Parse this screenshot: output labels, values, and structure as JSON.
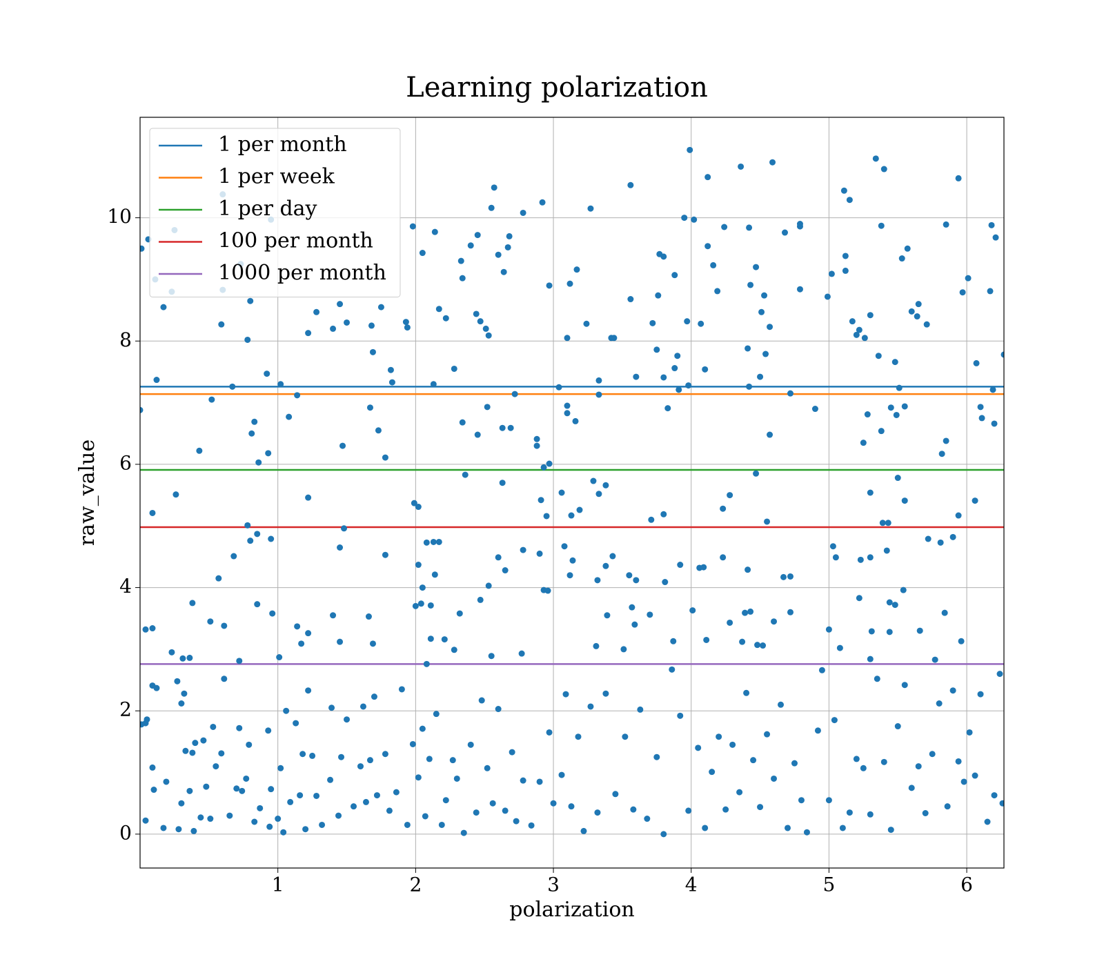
{
  "chart_data": {
    "type": "scatter",
    "title": "Learning polarization",
    "x_label": "polarization",
    "y_label": "raw_value",
    "color": "#1f77b4",
    "grid": true,
    "legend": "upper left",
    "xlim": [
      0,
      6.27
    ],
    "ylim": [
      -0.55,
      11.63
    ],
    "xticks": [
      1,
      2,
      3,
      4,
      5,
      6
    ],
    "yticks": [
      0,
      2,
      4,
      6,
      8,
      10
    ],
    "hlines": [
      {
        "name": "1 per month",
        "color": "#1f77b4",
        "value": 7.26
      },
      {
        "name": "1 per week",
        "color": "#ff7f0e",
        "value": 7.14
      },
      {
        "name": "1 per day",
        "color": "#2ca02c",
        "value": 5.91
      },
      {
        "name": "100 per month",
        "color": "#d62728",
        "value": 4.98
      },
      {
        "name": "1000 per month",
        "color": "#9467bd",
        "value": 2.76
      }
    ],
    "x": [
      0.01,
      0.06,
      0.11,
      0.17,
      0.23,
      0.25,
      0.12,
      0.6,
      0.6,
      0.59,
      0.78,
      0.8,
      0.73,
      0.92,
      1.02,
      1.08,
      1.14,
      0.95,
      1.22,
      1.28,
      1.4,
      1.45,
      1.5,
      1.47,
      1.68,
      1.69,
      1.75,
      1.82,
      1.83,
      1.67,
      1.73,
      1.78,
      1.93,
      1.94,
      1.98,
      2.05,
      2.14,
      2.17,
      2.22,
      2.13,
      2.28,
      2.33,
      2.34,
      2.4,
      2.45,
      2.44,
      2.47,
      2.51,
      2.53,
      2.55,
      2.57,
      2.6,
      2.64,
      2.68,
      2.67,
      2.78,
      2.92,
      2.97,
      2.72,
      2.52,
      2.34,
      2.45,
      2.63,
      2.69,
      2.88,
      2.88,
      2.93,
      2.97,
      3.04,
      3.1,
      3.1,
      3.1,
      3.16,
      3.12,
      3.17,
      3.27,
      3.24,
      3.33,
      3.33,
      3.42,
      3.44,
      3.56,
      3.56,
      3.6,
      3.72,
      3.77,
      3.8,
      3.76,
      3.75,
      3.8,
      3.83,
      3.88,
      3.88,
      3.9,
      3.91,
      3.95,
      3.97,
      3.98,
      3.99,
      4.02,
      4.07,
      4.1,
      4.12,
      4.12,
      4.16,
      4.19,
      4.24,
      4.36,
      4.41,
      4.42,
      4.43,
      4.42,
      4.47,
      4.51,
      4.53,
      4.5,
      4.54,
      4.57,
      4.57,
      4.59,
      4.68,
      4.72,
      4.79,
      4.79,
      4.79,
      4.9,
      4.99,
      5.02,
      5.11,
      5.12,
      5.12,
      5.15,
      5.17,
      5.2,
      5.22,
      5.26,
      5.3,
      5.34,
      5.38,
      5.4,
      5.36,
      5.28,
      5.25,
      5.38,
      5.45,
      5.48,
      5.51,
      5.53,
      5.57,
      5.6,
      5.64,
      5.65,
      5.71,
      5.55,
      5.49,
      5.82,
      5.85,
      5.85,
      5.94,
      5.97,
      6.01,
      6.07,
      6.1,
      6.11,
      6.18,
      6.17,
      6.19,
      6.2,
      6.21,
      6.27,
      0.0,
      0.09,
      0.26,
      0.43,
      0.52,
      0.67,
      0.81,
      0.83,
      0.86,
      0.93,
      0.57,
      0.68,
      0.78,
      0.8,
      0.85,
      0.95,
      0.85,
      0.96,
      0.38,
      0.51,
      0.61,
      0.04,
      0.09,
      0.23,
      0.31,
      0.36,
      0.72,
      1.01,
      1.22,
      1.45,
      1.48,
      1.14,
      1.17,
      1.22,
      1.4,
      1.45,
      1.66,
      1.69,
      1.78,
      1.99,
      2.02,
      2.0,
      2.02,
      2.04,
      2.05,
      2.08,
      2.11,
      2.14,
      2.13,
      2.17,
      2.11,
      2.21,
      2.08,
      2.28,
      2.32,
      2.36,
      2.47,
      2.53,
      2.6,
      2.63,
      2.65,
      2.55,
      2.78,
      2.77,
      2.9,
      2.93,
      2.96,
      2.95,
      2.91,
      3.06,
      3.08,
      3.12,
      3.13,
      3.19,
      3.14,
      3.29,
      3.33,
      3.38,
      3.38,
      3.32,
      3.43,
      3.39,
      3.31,
      3.51,
      3.55,
      3.6,
      3.57,
      3.59,
      3.71,
      3.7,
      3.8,
      3.81,
      3.87,
      3.92,
      4.01,
      4.06,
      4.09,
      4.11,
      4.23,
      4.28,
      4.23,
      4.28,
      4.37,
      4.39,
      4.41,
      4.43,
      4.47,
      4.48,
      4.52,
      4.55,
      4.6,
      4.67,
      4.72,
      4.72,
      5.0,
      5.03,
      5.05,
      5.08,
      5.23,
      5.22,
      5.3,
      5.3,
      5.31,
      5.3,
      5.39,
      5.43,
      5.42,
      5.44,
      5.48,
      5.5,
      5.55,
      5.54,
      5.44,
      5.66,
      5.72,
      5.81,
      5.9,
      5.94,
      5.96,
      5.84,
      6.06,
      5.77,
      0.01,
      0.04,
      0.05,
      0.04,
      0.09,
      0.12,
      0.09,
      0.1,
      0.17,
      0.19,
      0.27,
      0.3,
      0.32,
      0.33,
      0.3,
      0.28,
      0.36,
      0.38,
      0.39,
      0.4,
      0.44,
      0.46,
      0.48,
      0.51,
      0.53,
      0.55,
      0.59,
      0.61,
      0.65,
      0.7,
      0.72,
      0.74,
      0.77,
      0.79,
      0.83,
      0.87,
      0.93,
      0.94,
      0.95,
      1.0,
      1.02,
      1.04,
      1.06,
      1.09,
      1.13,
      1.16,
      1.18,
      1.2,
      1.22,
      1.25,
      1.28,
      1.32,
      1.38,
      1.39,
      1.44,
      1.46,
      1.5,
      1.55,
      1.6,
      1.62,
      1.64,
      1.67,
      1.7,
      1.72,
      1.78,
      1.81,
      1.86,
      1.9,
      1.94,
      1.98,
      2.02,
      2.05,
      2.07,
      2.1,
      2.15,
      2.19,
      2.22,
      2.27,
      2.3,
      2.35,
      2.4,
      2.44,
      2.48,
      2.52,
      2.56,
      2.6,
      2.65,
      2.7,
      2.73,
      2.78,
      2.84,
      2.9,
      2.97,
      3.0,
      3.06,
      3.09,
      3.13,
      3.18,
      3.22,
      3.27,
      3.32,
      3.38,
      3.45,
      3.52,
      3.58,
      3.63,
      3.68,
      3.75,
      3.8,
      3.86,
      3.92,
      3.98,
      4.05,
      4.1,
      4.15,
      4.2,
      4.25,
      4.3,
      4.35,
      4.4,
      4.45,
      4.5,
      4.55,
      4.6,
      4.65,
      4.7,
      4.75,
      4.8,
      4.84,
      4.92,
      4.95,
      5.0,
      5.04,
      5.1,
      5.15,
      5.2,
      5.25,
      5.3,
      5.35,
      5.4,
      5.45,
      5.5,
      5.55,
      5.6,
      5.65,
      5.7,
      5.75,
      5.8,
      5.86,
      5.9,
      5.94,
      5.98,
      6.02,
      6.06,
      6.1,
      6.15,
      6.2,
      6.24,
      6.26
    ],
    "values": [
      9.5,
      9.65,
      9.0,
      8.55,
      8.8,
      9.8,
      7.37,
      10.38,
      8.83,
      8.27,
      8.02,
      8.65,
      9.25,
      7.47,
      7.3,
      6.77,
      7.12,
      9.97,
      8.13,
      8.47,
      8.2,
      8.6,
      8.3,
      6.3,
      8.25,
      7.82,
      8.55,
      7.53,
      7.33,
      6.92,
      6.55,
      6.11,
      8.31,
      8.22,
      9.86,
      9.43,
      9.77,
      8.52,
      8.37,
      7.3,
      7.55,
      9.3,
      9.02,
      9.55,
      9.72,
      8.44,
      8.32,
      8.2,
      8.09,
      10.16,
      10.49,
      9.4,
      9.12,
      9.7,
      9.52,
      10.08,
      10.25,
      8.9,
      7.14,
      6.93,
      6.68,
      6.48,
      6.59,
      6.59,
      6.41,
      6.3,
      5.95,
      6.01,
      7.25,
      8.05,
      6.95,
      6.83,
      6.7,
      8.93,
      9.16,
      10.15,
      8.28,
      7.36,
      7.13,
      8.05,
      8.05,
      10.53,
      8.68,
      7.42,
      8.29,
      9.41,
      9.37,
      8.74,
      7.86,
      7.41,
      6.91,
      9.07,
      7.56,
      7.76,
      7.21,
      10.0,
      8.32,
      7.28,
      11.1,
      9.97,
      8.28,
      7.54,
      10.66,
      9.54,
      9.23,
      8.81,
      9.85,
      10.83,
      7.88,
      9.84,
      8.91,
      7.26,
      9.2,
      8.47,
      8.74,
      7.42,
      7.79,
      8.23,
      6.48,
      10.9,
      9.76,
      7.15,
      9.9,
      9.86,
      8.84,
      6.9,
      8.72,
      9.09,
      10.44,
      9.38,
      9.14,
      10.29,
      8.32,
      8.1,
      8.18,
      8.05,
      8.42,
      10.96,
      9.87,
      10.79,
      7.76,
      6.81,
      6.35,
      6.54,
      6.92,
      7.66,
      7.24,
      9.34,
      9.5,
      8.48,
      8.4,
      8.6,
      8.27,
      6.94,
      6.8,
      6.17,
      6.38,
      9.89,
      10.64,
      8.79,
      9.02,
      7.64,
      6.93,
      6.75,
      9.88,
      8.81,
      7.21,
      6.66,
      9.68,
      7.78,
      6.88,
      5.21,
      5.51,
      6.22,
      7.05,
      7.26,
      6.5,
      6.69,
      6.03,
      6.18,
      4.15,
      4.51,
      5.01,
      4.76,
      4.87,
      4.79,
      3.73,
      3.58,
      3.75,
      3.45,
      3.38,
      3.32,
      3.34,
      2.95,
      2.85,
      2.86,
      2.81,
      2.87,
      5.46,
      4.65,
      4.96,
      3.37,
      3.09,
      3.26,
      3.55,
      3.12,
      3.53,
      3.09,
      4.53,
      5.37,
      5.31,
      3.7,
      4.37,
      3.74,
      4.0,
      4.73,
      3.71,
      4.21,
      4.74,
      4.74,
      3.17,
      3.16,
      2.76,
      2.99,
      3.58,
      5.83,
      3.8,
      4.03,
      4.49,
      5.7,
      4.28,
      2.89,
      4.61,
      2.93,
      4.55,
      3.96,
      3.95,
      5.16,
      5.42,
      5.54,
      4.67,
      4.2,
      5.17,
      5.26,
      4.44,
      5.73,
      5.52,
      5.66,
      4.35,
      4.12,
      4.51,
      3.55,
      3.05,
      3.0,
      4.2,
      4.12,
      3.68,
      3.4,
      5.1,
      3.56,
      5.19,
      4.09,
      3.13,
      4.37,
      3.63,
      4.32,
      4.33,
      3.15,
      5.28,
      5.5,
      4.49,
      3.43,
      3.12,
      3.59,
      4.29,
      3.61,
      5.85,
      3.07,
      3.06,
      5.07,
      3.45,
      4.17,
      4.18,
      3.6,
      3.32,
      4.67,
      4.49,
      3.02,
      4.45,
      3.83,
      4.49,
      5.54,
      3.29,
      2.84,
      5.05,
      5.05,
      4.6,
      3.76,
      3.72,
      5.78,
      5.41,
      3.96,
      3.28,
      3.3,
      4.79,
      4.73,
      4.82,
      5.17,
      3.13,
      3.59,
      5.41,
      2.83,
      1.78,
      1.8,
      1.86,
      0.22,
      2.41,
      2.37,
      1.08,
      0.72,
      0.1,
      0.85,
      2.48,
      2.12,
      2.28,
      1.35,
      0.5,
      0.08,
      0.7,
      1.32,
      0.05,
      1.48,
      0.27,
      1.52,
      0.77,
      0.25,
      1.74,
      1.1,
      1.31,
      2.52,
      0.3,
      0.74,
      1.72,
      0.7,
      0.9,
      1.45,
      0.2,
      0.42,
      1.68,
      0.12,
      0.73,
      0.25,
      1.07,
      0.03,
      2.0,
      0.52,
      1.8,
      0.63,
      1.3,
      0.08,
      2.33,
      1.27,
      0.62,
      0.15,
      0.88,
      2.05,
      0.3,
      1.25,
      1.86,
      0.45,
      1.1,
      2.07,
      0.52,
      1.2,
      2.23,
      0.63,
      1.3,
      0.38,
      0.68,
      2.35,
      0.15,
      1.46,
      0.92,
      1.71,
      0.29,
      1.22,
      1.95,
      0.15,
      0.55,
      1.2,
      0.9,
      0.02,
      1.45,
      0.35,
      2.17,
      1.07,
      0.5,
      2.03,
      0.38,
      1.33,
      0.21,
      0.87,
      0.14,
      0.85,
      1.65,
      0.5,
      0.96,
      2.27,
      0.45,
      1.58,
      0.05,
      2.07,
      0.35,
      2.28,
      0.65,
      1.58,
      0.4,
      2.02,
      0.25,
      1.25,
      0.0,
      2.67,
      1.92,
      0.38,
      1.4,
      0.1,
      1.01,
      1.58,
      0.4,
      1.45,
      0.68,
      2.29,
      1.2,
      0.44,
      1.62,
      0.9,
      2.1,
      0.1,
      1.15,
      0.55,
      0.03,
      1.68,
      2.66,
      0.55,
      1.85,
      0.1,
      0.35,
      1.22,
      1.07,
      0.32,
      2.52,
      1.17,
      0.07,
      1.75,
      2.42,
      0.75,
      1.1,
      0.34,
      1.3,
      2.12,
      0.45,
      2.33,
      1.18,
      0.85,
      1.65,
      0.95,
      2.27,
      0.2,
      0.63,
      2.6,
      0.5
    ]
  }
}
